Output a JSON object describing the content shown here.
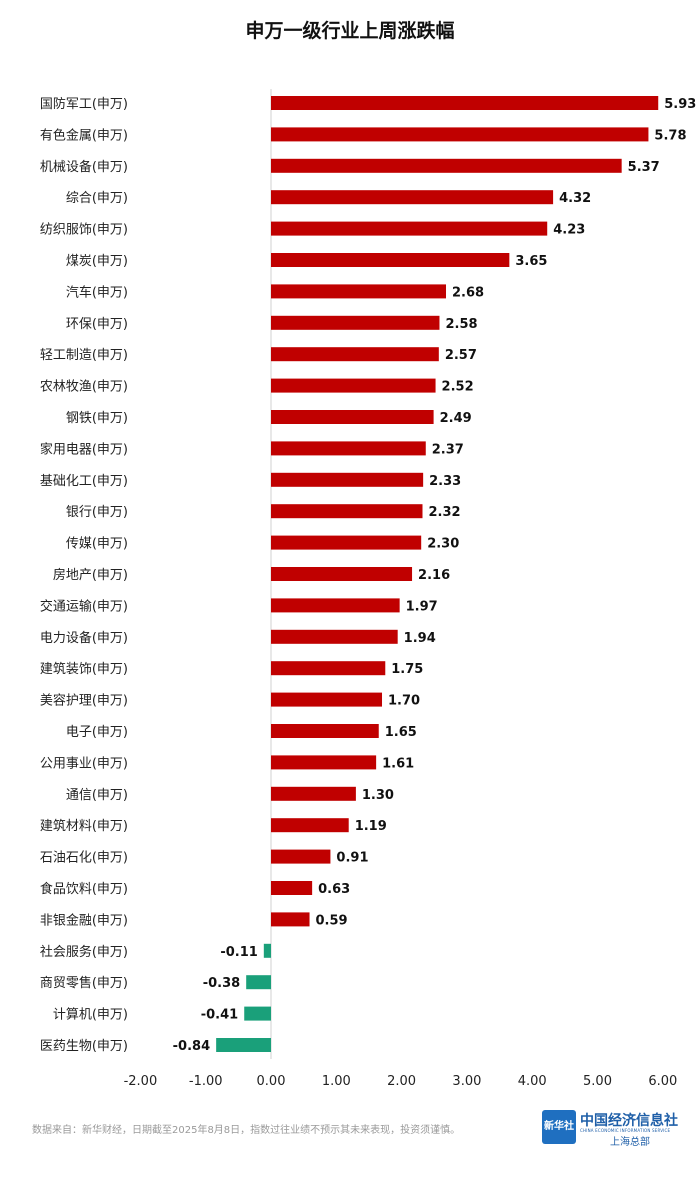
{
  "chart_data": {
    "type": "bar",
    "orientation": "horizontal",
    "title": "申万一级行业上周涨跌幅",
    "categories": [
      "国防军工(申万)",
      "有色金属(申万)",
      "机械设备(申万)",
      "综合(申万)",
      "纺织服饰(申万)",
      "煤炭(申万)",
      "汽车(申万)",
      "环保(申万)",
      "轻工制造(申万)",
      "农林牧渔(申万)",
      "钢铁(申万)",
      "家用电器(申万)",
      "基础化工(申万)",
      "银行(申万)",
      "传媒(申万)",
      "房地产(申万)",
      "交通运输(申万)",
      "电力设备(申万)",
      "建筑装饰(申万)",
      "美容护理(申万)",
      "电子(申万)",
      "公用事业(申万)",
      "通信(申万)",
      "建筑材料(申万)",
      "石油石化(申万)",
      "食品饮料(申万)",
      "非银金融(申万)",
      "社会服务(申万)",
      "商贸零售(申万)",
      "计算机(申万)",
      "医药生物(申万)"
    ],
    "values": [
      5.93,
      5.78,
      5.37,
      4.32,
      4.23,
      3.65,
      2.68,
      2.58,
      2.57,
      2.52,
      2.49,
      2.37,
      2.33,
      2.32,
      2.3,
      2.16,
      1.97,
      1.94,
      1.75,
      1.7,
      1.65,
      1.61,
      1.3,
      1.19,
      0.91,
      0.63,
      0.59,
      -0.11,
      -0.38,
      -0.41,
      -0.84
    ],
    "value_labels": [
      "5.93",
      "5.78",
      "5.37",
      "4.32",
      "4.23",
      "3.65",
      "2.68",
      "2.58",
      "2.57",
      "2.52",
      "2.49",
      "2.37",
      "2.33",
      "2.32",
      "2.30",
      "2.16",
      "1.97",
      "1.94",
      "1.75",
      "1.70",
      "1.65",
      "1.61",
      "1.30",
      "1.19",
      "0.91",
      "0.63",
      "0.59",
      "-0.11",
      "-0.38",
      "-0.41",
      "-0.84"
    ],
    "xlim": [
      -2.0,
      6.0
    ],
    "xticks": [
      "-2.00",
      "-1.00",
      "0.00",
      "1.00",
      "2.00",
      "3.00",
      "4.00",
      "5.00",
      "6.00"
    ],
    "grid": false,
    "positive_color": "#c00000",
    "negative_color": "#1aa07a"
  },
  "footer": {
    "source": "数据来自：新华财经，日期截至2025年8月8日，指数过往业绩不预示其未来表现，投资须谨慎。"
  },
  "logo": {
    "badge_text": "新华社",
    "name": "中国经济信息社",
    "english": "CHINA ECONOMIC INFORMATION SERVICE",
    "subtitle": "上海总部"
  }
}
